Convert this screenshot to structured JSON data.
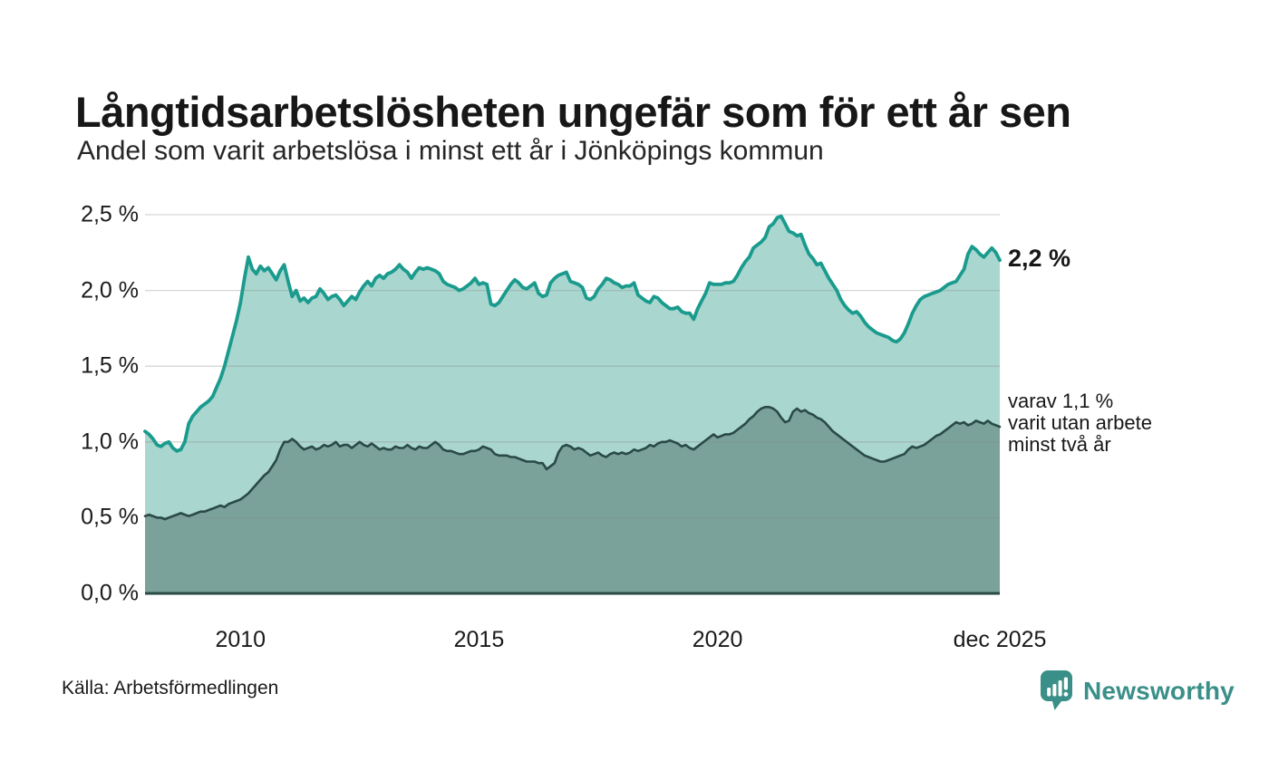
{
  "header": {
    "title": "Långtidsarbetslösheten ungefär som för ett år sen",
    "subtitle": "Andel som varit arbetslösa i minst ett år i Jönköpings kommun"
  },
  "colors": {
    "total_line": "#1a9b8d",
    "total_fill": "#a9d6ce",
    "twoyear_line": "#2a4a46",
    "twoyear_fill": "#7aa29b",
    "gridline": "#8a8a8a",
    "brand_teal": "#3a8f88",
    "text_dark": "#171717"
  },
  "annotations": {
    "last_total": "2,2 %",
    "last_twoyear": "varav 1,1 %\nvarit utan arbete\nminst två år"
  },
  "footer": {
    "source": "Källa: Arbetsförmedlingen",
    "brand": "Newsworthy"
  },
  "chart_data": {
    "type": "area",
    "title": "Andel som varit arbetslösa i minst ett år i Jönköpings kommun",
    "x_start_year": 2008,
    "x_months_per_point": 1,
    "xlim": [
      2008.0,
      2025.9167
    ],
    "ylim": [
      0,
      2.5
    ],
    "grid": true,
    "yticks": [
      {
        "label": "0,0 %",
        "value": 0.0
      },
      {
        "label": "0,5 %",
        "value": 0.5
      },
      {
        "label": "1,0 %",
        "value": 1.0
      },
      {
        "label": "1,5 %",
        "value": 1.5
      },
      {
        "label": "2,0 %",
        "value": 2.0
      },
      {
        "label": "2,5 %",
        "value": 2.5
      }
    ],
    "xticks": [
      {
        "label": "2010",
        "t": 2010.0
      },
      {
        "label": "2015",
        "t": 2015.0
      },
      {
        "label": "2020",
        "t": 2020.0
      },
      {
        "label": "dec 2025",
        "t": 2025.9167
      }
    ],
    "series": [
      {
        "name": "Arbetslösa minst ett år",
        "last_value_label": "2,2 %",
        "values": [
          1.07,
          1.05,
          1.02,
          0.98,
          0.97,
          0.99,
          1.0,
          0.96,
          0.94,
          0.95,
          1.0,
          1.12,
          1.17,
          1.2,
          1.23,
          1.25,
          1.27,
          1.3,
          1.36,
          1.42,
          1.5,
          1.6,
          1.7,
          1.8,
          1.92,
          2.08,
          2.22,
          2.14,
          2.11,
          2.16,
          2.13,
          2.15,
          2.11,
          2.07,
          2.13,
          2.17,
          2.06,
          1.96,
          2.0,
          1.93,
          1.95,
          1.92,
          1.95,
          1.96,
          2.01,
          1.98,
          1.94,
          1.96,
          1.97,
          1.94,
          1.9,
          1.93,
          1.96,
          1.94,
          1.99,
          2.03,
          2.06,
          2.03,
          2.08,
          2.1,
          2.08,
          2.11,
          2.12,
          2.14,
          2.17,
          2.14,
          2.12,
          2.08,
          2.12,
          2.15,
          2.14,
          2.15,
          2.14,
          2.13,
          2.11,
          2.06,
          2.04,
          2.03,
          2.02,
          2.0,
          2.01,
          2.03,
          2.05,
          2.08,
          2.04,
          2.05,
          2.04,
          1.91,
          1.9,
          1.92,
          1.96,
          2.0,
          2.04,
          2.07,
          2.05,
          2.02,
          2.01,
          2.03,
          2.05,
          1.98,
          1.96,
          1.97,
          2.05,
          2.08,
          2.1,
          2.11,
          2.12,
          2.06,
          2.05,
          2.04,
          2.02,
          1.95,
          1.94,
          1.96,
          2.01,
          2.04,
          2.08,
          2.07,
          2.05,
          2.04,
          2.02,
          2.03,
          2.03,
          2.05,
          1.97,
          1.95,
          1.93,
          1.92,
          1.96,
          1.95,
          1.92,
          1.9,
          1.88,
          1.88,
          1.89,
          1.86,
          1.85,
          1.85,
          1.81,
          1.88,
          1.93,
          1.98,
          2.05,
          2.04,
          2.04,
          2.04,
          2.05,
          2.05,
          2.06,
          2.1,
          2.15,
          2.19,
          2.22,
          2.28,
          2.3,
          2.32,
          2.35,
          2.42,
          2.44,
          2.48,
          2.49,
          2.44,
          2.39,
          2.38,
          2.36,
          2.37,
          2.3,
          2.24,
          2.21,
          2.17,
          2.18,
          2.13,
          2.08,
          2.04,
          2.0,
          1.94,
          1.9,
          1.87,
          1.85,
          1.86,
          1.83,
          1.79,
          1.76,
          1.74,
          1.72,
          1.71,
          1.7,
          1.69,
          1.67,
          1.66,
          1.68,
          1.72,
          1.78,
          1.85,
          1.9,
          1.94,
          1.96,
          1.97,
          1.98,
          1.99,
          2.0,
          2.02,
          2.04,
          2.05,
          2.06,
          2.1,
          2.14,
          2.24,
          2.29,
          2.27,
          2.24,
          2.22,
          2.25,
          2.28,
          2.25,
          2.2
        ]
      },
      {
        "name": "varav utan arbete minst två år",
        "last_value_label": "1,1 %",
        "values": [
          0.51,
          0.52,
          0.51,
          0.5,
          0.5,
          0.49,
          0.5,
          0.51,
          0.52,
          0.53,
          0.52,
          0.51,
          0.52,
          0.53,
          0.54,
          0.54,
          0.55,
          0.56,
          0.57,
          0.58,
          0.57,
          0.59,
          0.6,
          0.61,
          0.62,
          0.64,
          0.66,
          0.69,
          0.72,
          0.75,
          0.78,
          0.8,
          0.84,
          0.88,
          0.95,
          1.0,
          1.0,
          1.02,
          1.0,
          0.97,
          0.95,
          0.96,
          0.97,
          0.95,
          0.96,
          0.98,
          0.97,
          0.98,
          1.0,
          0.97,
          0.98,
          0.98,
          0.96,
          0.98,
          1.0,
          0.98,
          0.97,
          0.99,
          0.97,
          0.95,
          0.96,
          0.95,
          0.95,
          0.97,
          0.96,
          0.96,
          0.98,
          0.96,
          0.95,
          0.97,
          0.96,
          0.96,
          0.98,
          1.0,
          0.98,
          0.95,
          0.94,
          0.94,
          0.93,
          0.92,
          0.92,
          0.93,
          0.94,
          0.94,
          0.95,
          0.97,
          0.96,
          0.95,
          0.92,
          0.91,
          0.91,
          0.91,
          0.9,
          0.9,
          0.89,
          0.88,
          0.87,
          0.87,
          0.87,
          0.86,
          0.86,
          0.82,
          0.84,
          0.86,
          0.93,
          0.97,
          0.98,
          0.97,
          0.95,
          0.96,
          0.95,
          0.93,
          0.91,
          0.92,
          0.93,
          0.91,
          0.9,
          0.92,
          0.93,
          0.92,
          0.93,
          0.92,
          0.93,
          0.95,
          0.94,
          0.95,
          0.96,
          0.98,
          0.97,
          0.99,
          1.0,
          1.0,
          1.01,
          1.0,
          0.99,
          0.97,
          0.98,
          0.96,
          0.95,
          0.97,
          0.99,
          1.01,
          1.03,
          1.05,
          1.03,
          1.04,
          1.05,
          1.05,
          1.06,
          1.08,
          1.1,
          1.12,
          1.15,
          1.17,
          1.2,
          1.22,
          1.23,
          1.23,
          1.22,
          1.2,
          1.16,
          1.13,
          1.14,
          1.2,
          1.22,
          1.2,
          1.21,
          1.19,
          1.18,
          1.16,
          1.15,
          1.13,
          1.1,
          1.07,
          1.05,
          1.03,
          1.01,
          0.99,
          0.97,
          0.95,
          0.93,
          0.91,
          0.9,
          0.89,
          0.88,
          0.87,
          0.87,
          0.88,
          0.89,
          0.9,
          0.91,
          0.92,
          0.95,
          0.97,
          0.96,
          0.97,
          0.98,
          1.0,
          1.02,
          1.04,
          1.05,
          1.07,
          1.09,
          1.11,
          1.13,
          1.12,
          1.13,
          1.11,
          1.12,
          1.14,
          1.13,
          1.12,
          1.14,
          1.12,
          1.11,
          1.1
        ]
      }
    ]
  }
}
